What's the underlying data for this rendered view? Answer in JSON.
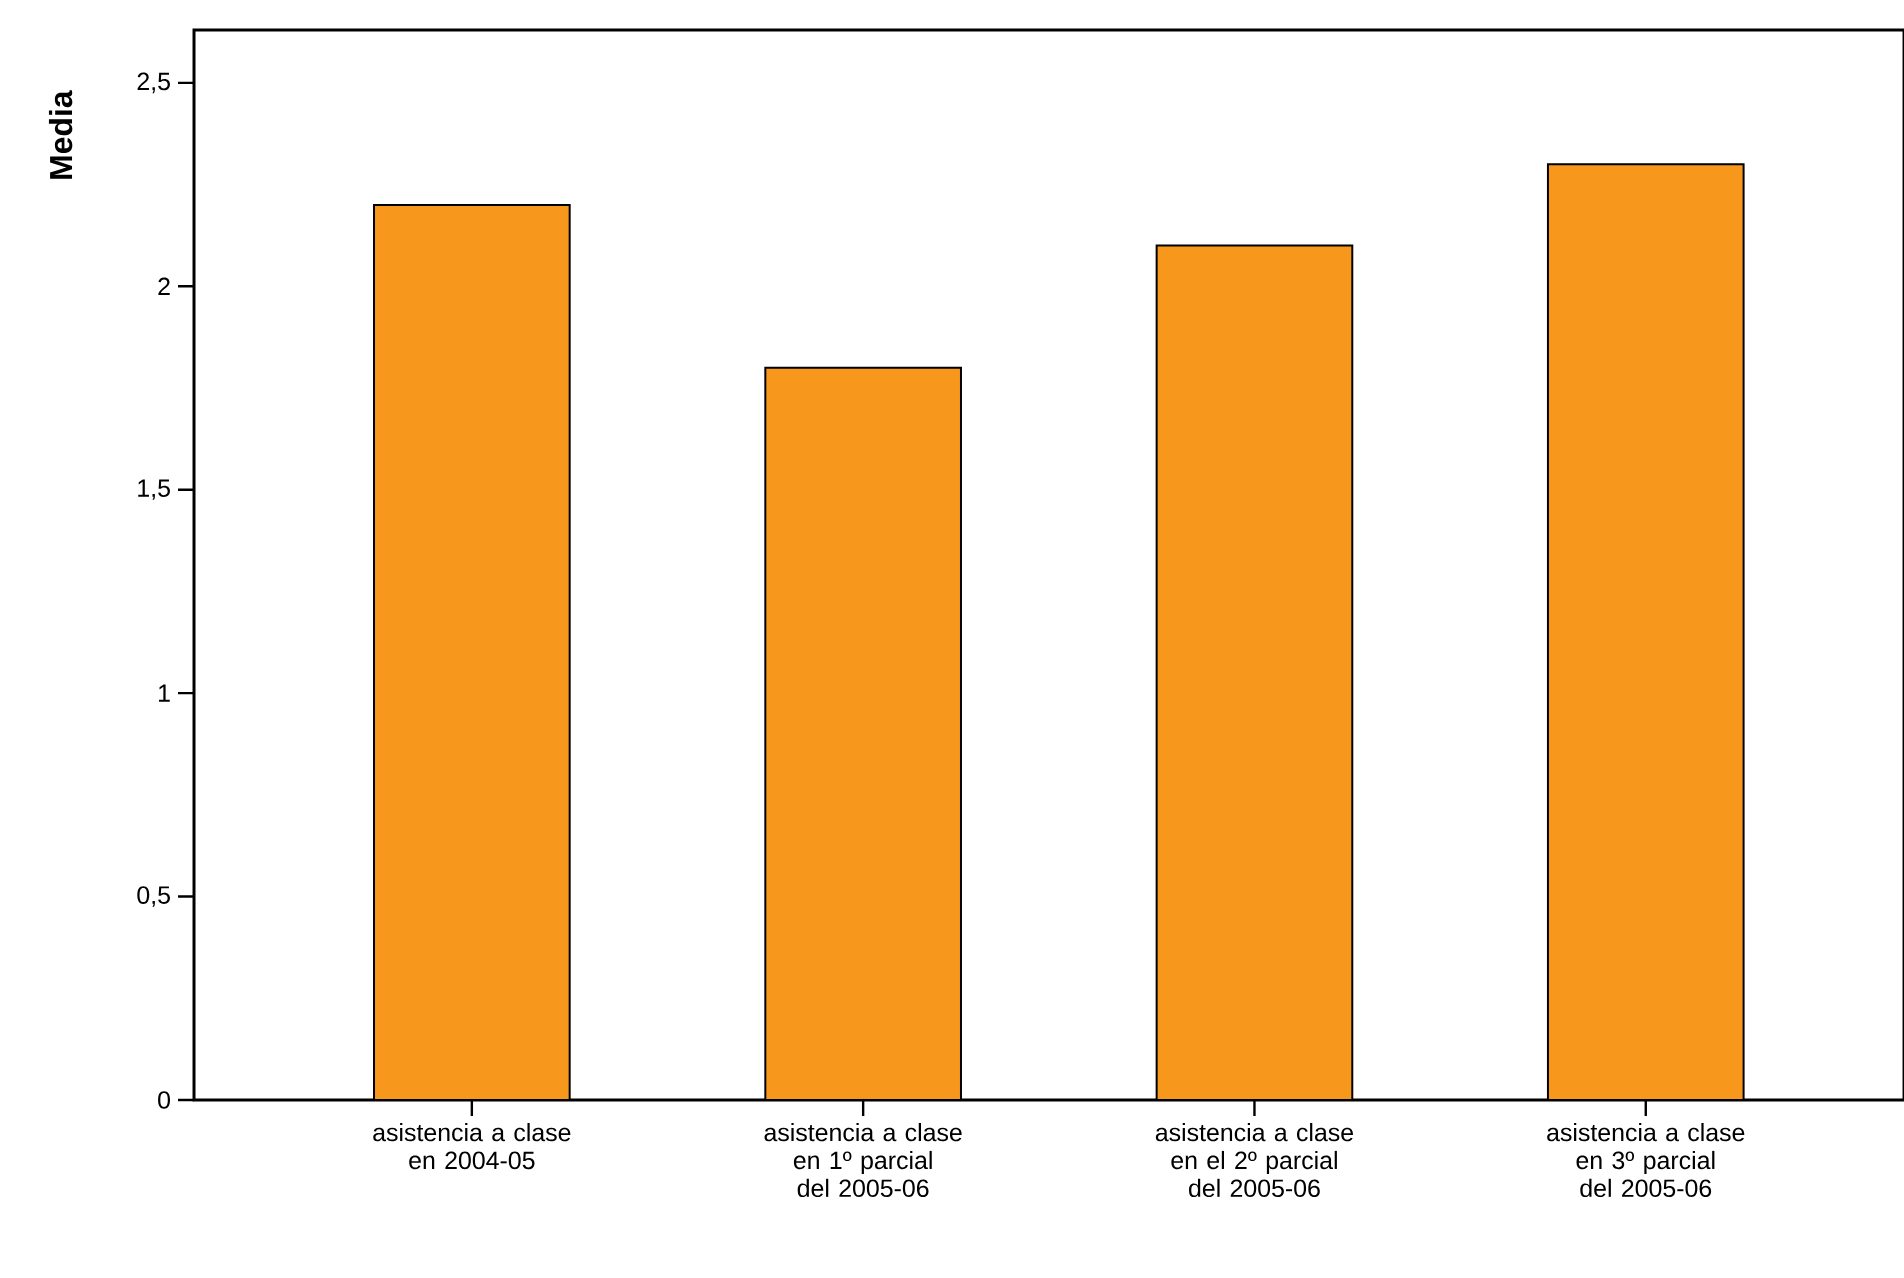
{
  "chart_data": {
    "type": "bar",
    "ylabel": "Media",
    "categories": [
      "asistencia a clase en 2004-05",
      "asistencia a clase en 1º parcial del 2005-06",
      "asistencia a clase en el 2º parcial del 2005-06",
      "asistencia a clase en 3º parcial del 2005-06"
    ],
    "values": [
      2.2,
      1.8,
      2.1,
      2.3
    ],
    "color": "#f7981d",
    "ylim": [
      0,
      2.63
    ],
    "yticks": [
      0,
      {
        "value": 0.5,
        "label": "0,5"
      },
      1,
      {
        "value": 1.5,
        "label": "1,5"
      },
      2,
      {
        "value": 2.5,
        "label": "2,5"
      }
    ],
    "grid": false
  }
}
